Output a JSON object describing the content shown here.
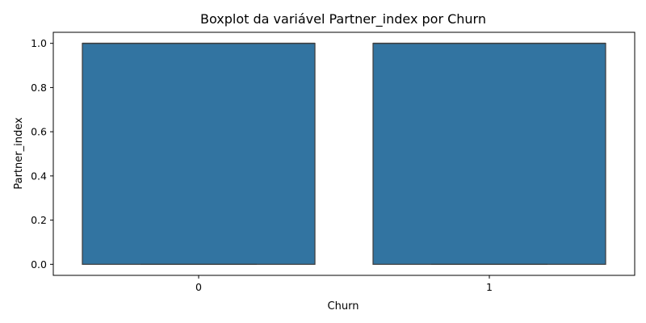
{
  "chart_data": {
    "type": "boxplot",
    "title": "Boxplot da variável Partner_index por Churn",
    "xlabel": "Churn",
    "ylabel": "Partner_index",
    "categories": [
      "0",
      "1"
    ],
    "boxes": [
      {
        "category": "0",
        "min": 0.0,
        "q1": 0.0,
        "median": 1.0,
        "q3": 1.0,
        "max": 1.0
      },
      {
        "category": "1",
        "min": 0.0,
        "q1": 0.0,
        "median": 1.0,
        "q3": 1.0,
        "max": 1.0
      }
    ],
    "yticks": [
      0.0,
      0.2,
      0.4,
      0.6,
      0.8,
      1.0
    ],
    "ytick_labels": [
      "0.0",
      "0.2",
      "0.4",
      "0.6",
      "0.8",
      "1.0"
    ],
    "ylim": [
      -0.05,
      1.05
    ],
    "grid": false,
    "colors": {
      "box_fill": "#3274a1",
      "box_edge": "#3f3f3f",
      "axis": "#000000"
    }
  }
}
